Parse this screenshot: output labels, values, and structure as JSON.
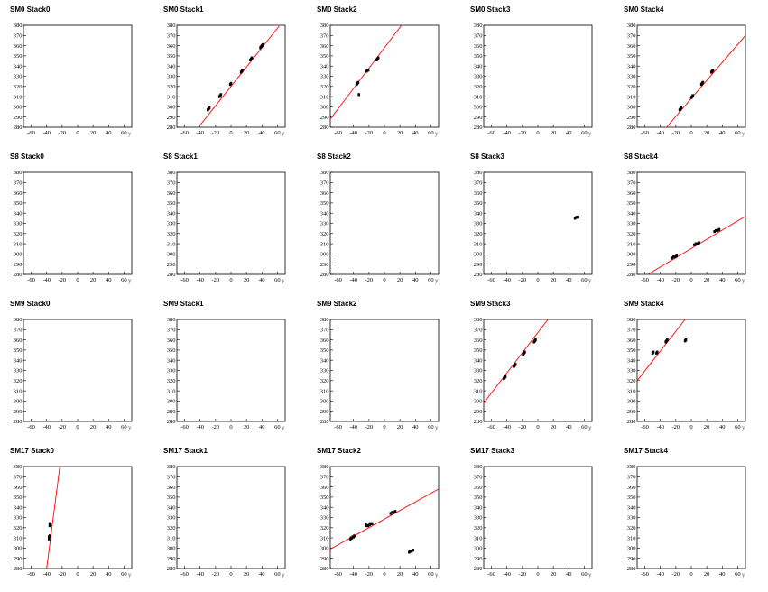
{
  "chart_data": {
    "type": "scatter",
    "axes": {
      "xlabel": "y",
      "xlim": [
        -70,
        70
      ],
      "ylim": [
        280,
        380
      ],
      "xticks": [
        -60,
        -40,
        -20,
        0,
        20,
        40,
        60
      ],
      "yticks": [
        280,
        290,
        300,
        310,
        320,
        330,
        340,
        350,
        360,
        370,
        380
      ],
      "fit_color": "#ff0000",
      "point_color": "#000000"
    },
    "panels": [
      {
        "title": "SM0 Stack0",
        "points": [],
        "fit": null
      },
      {
        "title": "SM0 Stack1",
        "points": [
          [
            -30,
            297
          ],
          [
            -29,
            298
          ],
          [
            -28,
            299
          ],
          [
            -15,
            310
          ],
          [
            -14,
            311
          ],
          [
            -13,
            312
          ],
          [
            -1,
            322
          ],
          [
            0,
            323
          ],
          [
            13,
            334
          ],
          [
            14,
            335
          ],
          [
            15,
            336
          ],
          [
            25,
            346
          ],
          [
            26,
            347
          ],
          [
            27,
            348
          ],
          [
            38,
            358
          ],
          [
            39,
            359
          ],
          [
            40,
            360
          ],
          [
            41,
            361
          ]
        ],
        "fit": {
          "x": [
            -40,
            62
          ],
          "y": [
            282,
            379
          ]
        }
      },
      {
        "title": "SM0 Stack2",
        "points": [
          [
            -36,
            322
          ],
          [
            -35,
            323
          ],
          [
            -34,
            324
          ],
          [
            -23,
            335
          ],
          [
            -22,
            336
          ],
          [
            -21,
            336
          ],
          [
            -10,
            346
          ],
          [
            -9,
            347
          ],
          [
            -8,
            348
          ],
          [
            -33,
            312
          ]
        ],
        "fit": {
          "x": [
            -70,
            22
          ],
          "y": [
            288,
            380
          ]
        }
      },
      {
        "title": "SM0 Stack3",
        "points": [],
        "fit": null
      },
      {
        "title": "SM0 Stack4",
        "points": [
          [
            -15,
            297
          ],
          [
            -14,
            298
          ],
          [
            -13,
            299
          ],
          [
            0,
            309
          ],
          [
            1,
            310
          ],
          [
            2,
            311
          ],
          [
            13,
            322
          ],
          [
            14,
            323
          ],
          [
            15,
            324
          ],
          [
            26,
            334
          ],
          [
            27,
            335
          ],
          [
            28,
            336
          ]
        ],
        "fit": {
          "x": [
            -32,
            70
          ],
          "y": [
            280,
            370
          ]
        }
      },
      {
        "title": "S8 Stack0",
        "points": [],
        "fit": null
      },
      {
        "title": "S8 Stack1",
        "points": [],
        "fit": null
      },
      {
        "title": "S8 Stack2",
        "points": [],
        "fit": null
      },
      {
        "title": "S8 Stack3",
        "points": [
          [
            48,
            335
          ],
          [
            50,
            336
          ],
          [
            52,
            336
          ]
        ],
        "fit": null
      },
      {
        "title": "S8 Stack4",
        "points": [
          [
            -25,
            296
          ],
          [
            -23,
            297
          ],
          [
            -21,
            297
          ],
          [
            -19,
            298
          ],
          [
            4,
            309
          ],
          [
            6,
            310
          ],
          [
            8,
            310
          ],
          [
            10,
            311
          ],
          [
            30,
            322
          ],
          [
            32,
            323
          ],
          [
            34,
            323
          ],
          [
            36,
            324
          ]
        ],
        "fit": {
          "x": [
            -56,
            70
          ],
          "y": [
            280,
            337
          ]
        }
      },
      {
        "title": "SM9 Stack0",
        "points": [],
        "fit": null
      },
      {
        "title": "SM9 Stack1",
        "points": [],
        "fit": null
      },
      {
        "title": "SM9 Stack2",
        "points": [],
        "fit": null
      },
      {
        "title": "SM9 Stack3",
        "points": [
          [
            -44,
            322
          ],
          [
            -43,
            323
          ],
          [
            -42,
            324
          ],
          [
            -31,
            334
          ],
          [
            -30,
            335
          ],
          [
            -29,
            336
          ],
          [
            -19,
            346
          ],
          [
            -18,
            347
          ],
          [
            -17,
            348
          ],
          [
            -5,
            358
          ],
          [
            -4,
            359
          ],
          [
            -3,
            360
          ]
        ],
        "fit": {
          "x": [
            -70,
            13
          ],
          "y": [
            298,
            380
          ]
        }
      },
      {
        "title": "SM9 Stack4",
        "points": [
          [
            -50,
            347
          ],
          [
            -49,
            348
          ],
          [
            -45,
            347
          ],
          [
            -44,
            348
          ],
          [
            -33,
            358
          ],
          [
            -32,
            359
          ],
          [
            -31,
            360
          ],
          [
            -8,
            359
          ],
          [
            -7,
            360
          ]
        ],
        "fit": {
          "x": [
            -70,
            -8
          ],
          "y": [
            320,
            380
          ]
        }
      },
      {
        "title": "SM17 Stack0",
        "points": [
          [
            -37,
            309
          ],
          [
            -37,
            311
          ],
          [
            -36,
            312
          ],
          [
            -36,
            322
          ],
          [
            -35,
            323
          ],
          [
            -36,
            324
          ]
        ],
        "fit": {
          "x": [
            -40,
            -23
          ],
          "y": [
            280,
            380
          ]
        }
      },
      {
        "title": "SM17 Stack1",
        "points": [],
        "fit": null
      },
      {
        "title": "SM17 Stack2",
        "points": [
          [
            -44,
            309
          ],
          [
            -43,
            310
          ],
          [
            -42,
            310
          ],
          [
            -41,
            311
          ],
          [
            -40,
            311
          ],
          [
            -39,
            312
          ],
          [
            -24,
            323
          ],
          [
            -23,
            322
          ],
          [
            -21,
            322
          ],
          [
            -19,
            323
          ],
          [
            -18,
            324
          ],
          [
            -16,
            324
          ],
          [
            8,
            334
          ],
          [
            10,
            335
          ],
          [
            12,
            335
          ],
          [
            14,
            336
          ],
          [
            32,
            296
          ],
          [
            33,
            297
          ],
          [
            35,
            297
          ],
          [
            37,
            298
          ]
        ],
        "fit": {
          "x": [
            -70,
            70
          ],
          "y": [
            299,
            358
          ]
        }
      },
      {
        "title": "SM17 Stack3",
        "points": [],
        "fit": null
      },
      {
        "title": "SM17 Stack4",
        "points": [],
        "fit": null
      }
    ]
  }
}
